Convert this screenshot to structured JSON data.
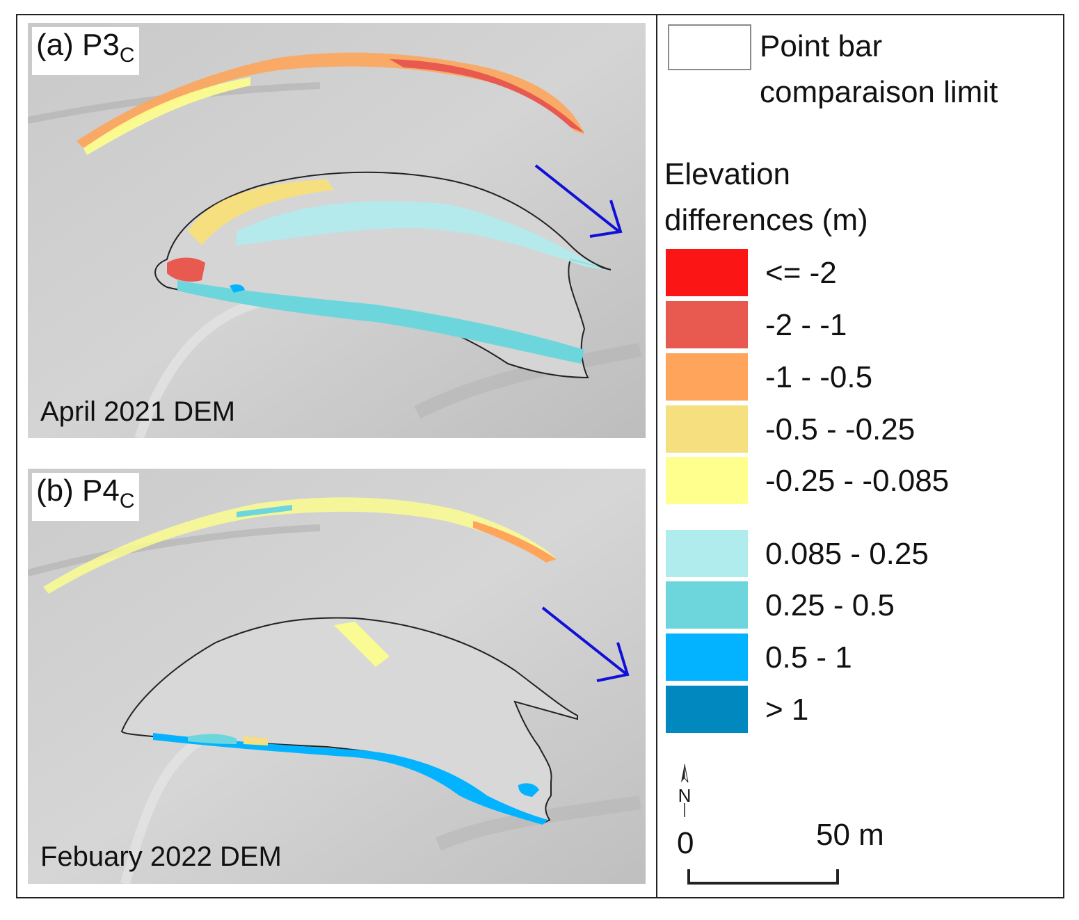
{
  "panels": [
    {
      "label": "(a) P3",
      "subscript": "C",
      "caption": "April 2021 DEM"
    },
    {
      "label": "(b) P4",
      "subscript": "C",
      "caption": "Febuary 2022 DEM"
    }
  ],
  "legend": {
    "limit_label_line1": "Point bar",
    "limit_label_line2": "comparaison limit",
    "title_line1": "Elevation",
    "title_line2": "differences (m)",
    "classes": [
      {
        "label": "<= -2",
        "color": "#fb1515"
      },
      {
        "label": "-2 - -1",
        "color": "#e8594f"
      },
      {
        "label": "-1 - -0.5",
        "color": "#fea55b"
      },
      {
        "label": "-0.5 - -0.25",
        "color": "#f6df7e"
      },
      {
        "label": "-0.25 - -0.085",
        "color": "#feff8c"
      },
      {
        "label": "0.085 - 0.25",
        "color": "#b0ecee"
      },
      {
        "label": "0.25 - 0.5",
        "color": "#6dd6dc"
      },
      {
        "label": "0.5 - 1",
        "color": "#04b3ff"
      },
      {
        "label": "> 1",
        "color": "#0088bf"
      }
    ]
  },
  "north_label": "N",
  "scale": {
    "zero": "0",
    "max": "50 m"
  },
  "colors": {
    "flow_arrow": "#1010d8",
    "outline": "#222222",
    "hillshade": "#cfcfcf"
  }
}
